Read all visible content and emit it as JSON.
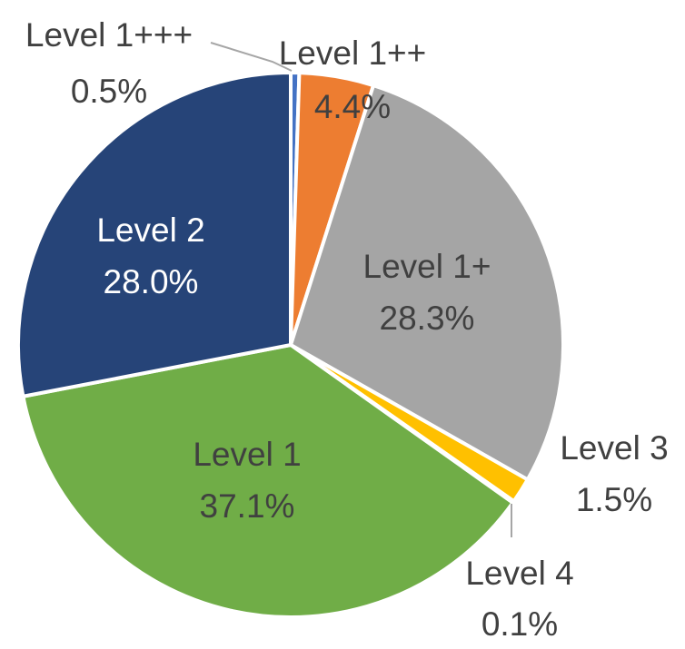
{
  "chart_data": {
    "type": "pie",
    "title": "",
    "start": "top",
    "direction": "clockwise",
    "slices": [
      {
        "label": "Level 1+++",
        "value": 0.5,
        "display": "0.5%",
        "color": "#4472C4"
      },
      {
        "label": "Level 1++",
        "value": 4.4,
        "display": "4.4%",
        "color": "#ED7D31"
      },
      {
        "label": "Level 1+",
        "value": 28.3,
        "display": "28.3%",
        "color": "#A5A5A5"
      },
      {
        "label": "Level 3",
        "value": 1.5,
        "display": "1.5%",
        "color": "#FFC000"
      },
      {
        "label": "Level 4",
        "value": 0.1,
        "display": "0.1%",
        "color": "#5B9BD5"
      },
      {
        "label": "Level 1",
        "value": 37.1,
        "display": "37.1%",
        "color": "#70AD47"
      },
      {
        "label": "Level 2",
        "value": 28.0,
        "display": "28.0%",
        "color": "#264478"
      }
    ]
  }
}
